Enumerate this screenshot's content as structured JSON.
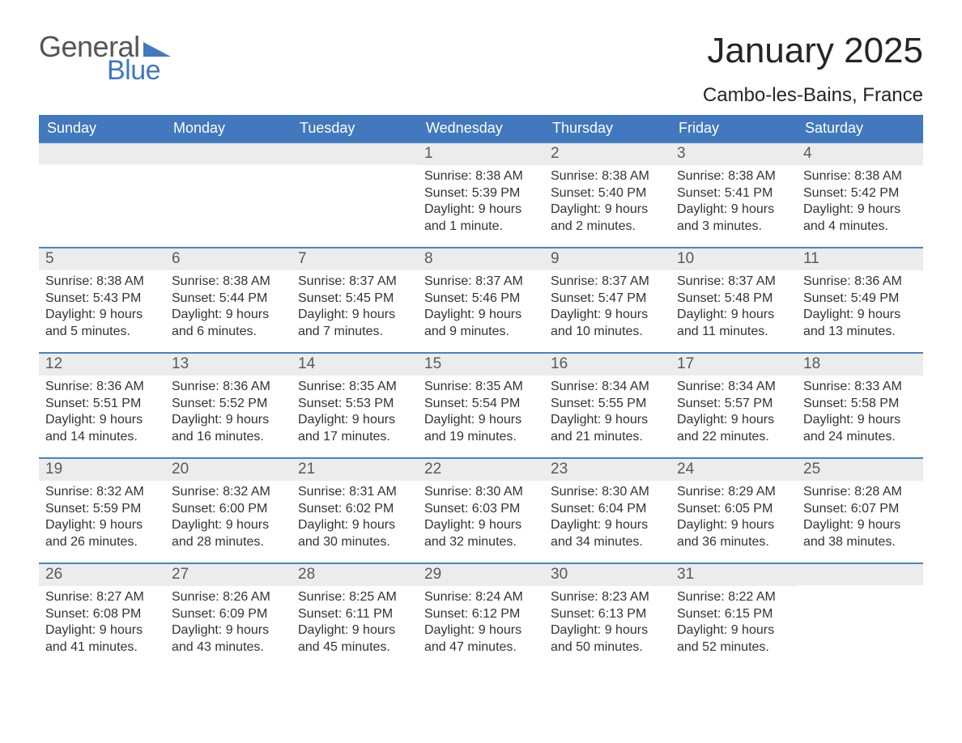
{
  "logo": {
    "word1": "General",
    "word2": "Blue",
    "accent_color": "#4178be",
    "word1_color": "#555555"
  },
  "header": {
    "month_title": "January 2025",
    "location": "Cambo-les-Bains, France"
  },
  "calendar": {
    "type": "table",
    "header_bg": "#4178be",
    "header_text_color": "#ffffff",
    "daynum_bg": "#ececec",
    "daynum_color": "#5a5a5a",
    "row_divider": "#4a82c3",
    "body_text": "#333333",
    "background_color": "#ffffff",
    "day_headers": [
      "Sunday",
      "Monday",
      "Tuesday",
      "Wednesday",
      "Thursday",
      "Friday",
      "Saturday"
    ],
    "labels": {
      "sunrise": "Sunrise:",
      "sunset": "Sunset:",
      "daylight": "Daylight:"
    },
    "weeks": [
      [
        null,
        null,
        null,
        {
          "n": "1",
          "sunrise": "8:38 AM",
          "sunset": "5:39 PM",
          "daylight": "9 hours and 1 minute."
        },
        {
          "n": "2",
          "sunrise": "8:38 AM",
          "sunset": "5:40 PM",
          "daylight": "9 hours and 2 minutes."
        },
        {
          "n": "3",
          "sunrise": "8:38 AM",
          "sunset": "5:41 PM",
          "daylight": "9 hours and 3 minutes."
        },
        {
          "n": "4",
          "sunrise": "8:38 AM",
          "sunset": "5:42 PM",
          "daylight": "9 hours and 4 minutes."
        }
      ],
      [
        {
          "n": "5",
          "sunrise": "8:38 AM",
          "sunset": "5:43 PM",
          "daylight": "9 hours and 5 minutes."
        },
        {
          "n": "6",
          "sunrise": "8:38 AM",
          "sunset": "5:44 PM",
          "daylight": "9 hours and 6 minutes."
        },
        {
          "n": "7",
          "sunrise": "8:37 AM",
          "sunset": "5:45 PM",
          "daylight": "9 hours and 7 minutes."
        },
        {
          "n": "8",
          "sunrise": "8:37 AM",
          "sunset": "5:46 PM",
          "daylight": "9 hours and 9 minutes."
        },
        {
          "n": "9",
          "sunrise": "8:37 AM",
          "sunset": "5:47 PM",
          "daylight": "9 hours and 10 minutes."
        },
        {
          "n": "10",
          "sunrise": "8:37 AM",
          "sunset": "5:48 PM",
          "daylight": "9 hours and 11 minutes."
        },
        {
          "n": "11",
          "sunrise": "8:36 AM",
          "sunset": "5:49 PM",
          "daylight": "9 hours and 13 minutes."
        }
      ],
      [
        {
          "n": "12",
          "sunrise": "8:36 AM",
          "sunset": "5:51 PM",
          "daylight": "9 hours and 14 minutes."
        },
        {
          "n": "13",
          "sunrise": "8:36 AM",
          "sunset": "5:52 PM",
          "daylight": "9 hours and 16 minutes."
        },
        {
          "n": "14",
          "sunrise": "8:35 AM",
          "sunset": "5:53 PM",
          "daylight": "9 hours and 17 minutes."
        },
        {
          "n": "15",
          "sunrise": "8:35 AM",
          "sunset": "5:54 PM",
          "daylight": "9 hours and 19 minutes."
        },
        {
          "n": "16",
          "sunrise": "8:34 AM",
          "sunset": "5:55 PM",
          "daylight": "9 hours and 21 minutes."
        },
        {
          "n": "17",
          "sunrise": "8:34 AM",
          "sunset": "5:57 PM",
          "daylight": "9 hours and 22 minutes."
        },
        {
          "n": "18",
          "sunrise": "8:33 AM",
          "sunset": "5:58 PM",
          "daylight": "9 hours and 24 minutes."
        }
      ],
      [
        {
          "n": "19",
          "sunrise": "8:32 AM",
          "sunset": "5:59 PM",
          "daylight": "9 hours and 26 minutes."
        },
        {
          "n": "20",
          "sunrise": "8:32 AM",
          "sunset": "6:00 PM",
          "daylight": "9 hours and 28 minutes."
        },
        {
          "n": "21",
          "sunrise": "8:31 AM",
          "sunset": "6:02 PM",
          "daylight": "9 hours and 30 minutes."
        },
        {
          "n": "22",
          "sunrise": "8:30 AM",
          "sunset": "6:03 PM",
          "daylight": "9 hours and 32 minutes."
        },
        {
          "n": "23",
          "sunrise": "8:30 AM",
          "sunset": "6:04 PM",
          "daylight": "9 hours and 34 minutes."
        },
        {
          "n": "24",
          "sunrise": "8:29 AM",
          "sunset": "6:05 PM",
          "daylight": "9 hours and 36 minutes."
        },
        {
          "n": "25",
          "sunrise": "8:28 AM",
          "sunset": "6:07 PM",
          "daylight": "9 hours and 38 minutes."
        }
      ],
      [
        {
          "n": "26",
          "sunrise": "8:27 AM",
          "sunset": "6:08 PM",
          "daylight": "9 hours and 41 minutes."
        },
        {
          "n": "27",
          "sunrise": "8:26 AM",
          "sunset": "6:09 PM",
          "daylight": "9 hours and 43 minutes."
        },
        {
          "n": "28",
          "sunrise": "8:25 AM",
          "sunset": "6:11 PM",
          "daylight": "9 hours and 45 minutes."
        },
        {
          "n": "29",
          "sunrise": "8:24 AM",
          "sunset": "6:12 PM",
          "daylight": "9 hours and 47 minutes."
        },
        {
          "n": "30",
          "sunrise": "8:23 AM",
          "sunset": "6:13 PM",
          "daylight": "9 hours and 50 minutes."
        },
        {
          "n": "31",
          "sunrise": "8:22 AM",
          "sunset": "6:15 PM",
          "daylight": "9 hours and 52 minutes."
        },
        null
      ]
    ]
  }
}
